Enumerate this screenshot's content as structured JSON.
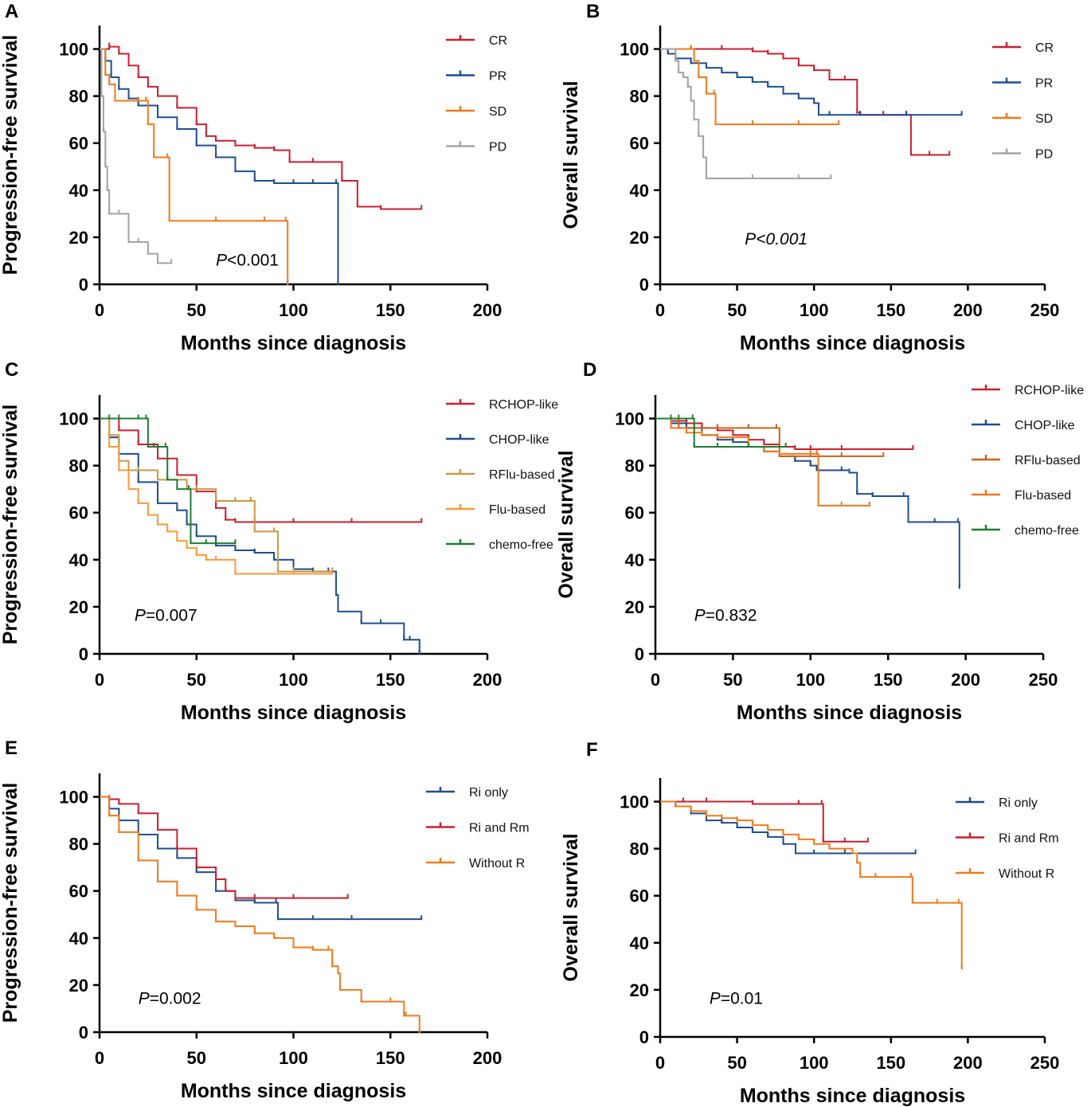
{
  "colors": {
    "red": "#c8202f",
    "blue": "#1f4e8c",
    "orange": "#f07a1e",
    "light_orange": "#f79a3c",
    "gray": "#a3a3a3",
    "tan": "#c79a45",
    "dark_orange": "#c8641e",
    "green": "#1e7d32"
  },
  "chart_data": [
    {
      "panel": "A",
      "type": "line",
      "ylabel": "Progression-free survival",
      "xlabel": "Months since diagnosis",
      "xlim": [
        0,
        200
      ],
      "ylim": [
        0,
        110
      ],
      "xticks": [
        "0",
        "50",
        "100",
        "150",
        "200"
      ],
      "yticks": [
        "0",
        "20",
        "40",
        "60",
        "80",
        "100"
      ],
      "pvalue": {
        "prefix": "P",
        "rest": "<0.001",
        "italic_rest": false,
        "x": 60,
        "y": 8
      },
      "series": [
        {
          "name": "CR",
          "color": "red",
          "x": [
            0,
            5,
            10,
            15,
            20,
            25,
            30,
            40,
            50,
            55,
            60,
            70,
            80,
            90,
            98,
            110,
            125,
            133,
            145,
            166
          ],
          "y": [
            100,
            101,
            98,
            93,
            88,
            84,
            80,
            75,
            68,
            63,
            61,
            59,
            58,
            57,
            52,
            52,
            44,
            33,
            32,
            32
          ]
        },
        {
          "name": "PR",
          "color": "blue",
          "x": [
            0,
            3,
            6,
            10,
            15,
            20,
            30,
            40,
            50,
            60,
            70,
            80,
            90,
            100,
            110,
            122,
            123
          ],
          "y": [
            100,
            95,
            88,
            83,
            79,
            76,
            71,
            66,
            59,
            54,
            48,
            44,
            43,
            43,
            43,
            43,
            0
          ]
        },
        {
          "name": "SD",
          "color": "orange",
          "x": [
            0,
            3,
            5,
            8,
            20,
            24,
            25,
            28,
            35,
            36,
            60,
            85,
            96,
            97
          ],
          "y": [
            100,
            89,
            85,
            78,
            78,
            78,
            68,
            54,
            54,
            27,
            27,
            27,
            27,
            0
          ]
        },
        {
          "name": "PD",
          "color": "gray",
          "x": [
            0,
            1,
            2,
            3,
            4,
            5,
            10,
            15,
            20,
            25,
            30,
            37
          ],
          "y": [
            100,
            80,
            65,
            50,
            40,
            30,
            30,
            18,
            18,
            13,
            9,
            9
          ]
        }
      ]
    },
    {
      "panel": "B",
      "type": "line",
      "ylabel": "Overall survival",
      "xlabel": "Months since diagnosis",
      "xlim": [
        0,
        250
      ],
      "ylim": [
        0,
        110
      ],
      "xticks": [
        "0",
        "50",
        "100",
        "150",
        "200",
        "250"
      ],
      "yticks": [
        "0",
        "20",
        "40",
        "60",
        "80",
        "100"
      ],
      "pvalue": {
        "prefix": "P",
        "rest": "<0.001",
        "italic_rest": true,
        "x": 55,
        "y": 17
      },
      "series": [
        {
          "name": "CR",
          "color": "red",
          "x": [
            0,
            20,
            40,
            60,
            70,
            80,
            90,
            100,
            110,
            120,
            128,
            130,
            145,
            160,
            163,
            175,
            188
          ],
          "y": [
            100,
            100,
            100,
            99,
            98,
            96,
            93,
            91,
            87,
            87,
            73,
            72,
            72,
            72,
            55,
            55,
            55
          ]
        },
        {
          "name": "PR",
          "color": "blue",
          "x": [
            0,
            5,
            10,
            20,
            30,
            40,
            50,
            60,
            70,
            80,
            90,
            100,
            103,
            110,
            130,
            160,
            196
          ],
          "y": [
            100,
            98,
            96,
            94,
            92,
            90,
            88,
            86,
            84,
            81,
            79,
            77,
            72,
            72,
            72,
            72,
            72
          ]
        },
        {
          "name": "SD",
          "color": "orange",
          "x": [
            0,
            20,
            22,
            25,
            30,
            35,
            36,
            60,
            90,
            116
          ],
          "y": [
            100,
            100,
            95,
            88,
            81,
            81,
            68,
            68,
            68,
            68
          ]
        },
        {
          "name": "PD",
          "color": "gray",
          "x": [
            0,
            10,
            12,
            15,
            18,
            20,
            22,
            25,
            28,
            30,
            60,
            90,
            111
          ],
          "y": [
            100,
            95,
            90,
            88,
            84,
            78,
            70,
            63,
            54,
            45,
            45,
            45,
            45
          ]
        }
      ]
    },
    {
      "panel": "C",
      "type": "line",
      "ylabel": "Progression-free survival",
      "xlabel": "Months since diagnosis",
      "xlim": [
        0,
        200
      ],
      "ylim": [
        0,
        110
      ],
      "xticks": [
        "0",
        "50",
        "100",
        "150",
        "200"
      ],
      "yticks": [
        "0",
        "20",
        "40",
        "60",
        "80",
        "100"
      ],
      "pvalue": {
        "prefix": "P",
        "rest": "=0.007",
        "italic_rest": false,
        "x": 18,
        "y": 14
      },
      "series": [
        {
          "name": "RCHOP-like",
          "color": "red",
          "x": [
            0,
            10,
            20,
            30,
            40,
            50,
            60,
            65,
            70,
            80,
            100,
            130,
            166
          ],
          "y": [
            100,
            95,
            89,
            83,
            76,
            69,
            62,
            57,
            56,
            56,
            56,
            56,
            56
          ]
        },
        {
          "name": "CHOP-like",
          "color": "blue",
          "x": [
            0,
            5,
            10,
            20,
            30,
            40,
            45,
            50,
            60,
            70,
            80,
            90,
            100,
            110,
            118,
            122,
            123,
            135,
            145,
            157,
            160,
            165
          ],
          "y": [
            100,
            92,
            85,
            73,
            64,
            61,
            55,
            50,
            46,
            44,
            43,
            40,
            36,
            35,
            35,
            25,
            18,
            13,
            13,
            6,
            6,
            0
          ]
        },
        {
          "name": "RFlu-based",
          "color": "tan",
          "x": [
            0,
            5,
            10,
            15,
            20,
            30,
            35,
            45,
            50,
            60,
            70,
            78,
            80,
            90,
            92,
            100,
            120
          ],
          "y": [
            100,
            93,
            82,
            78,
            78,
            74,
            74,
            70,
            70,
            65,
            65,
            65,
            52,
            52,
            35,
            35,
            35
          ]
        },
        {
          "name": "Flu-based",
          "color": "light_orange",
          "x": [
            0,
            5,
            10,
            15,
            20,
            25,
            30,
            35,
            40,
            45,
            50,
            55,
            60,
            70,
            100,
            120
          ],
          "y": [
            100,
            88,
            78,
            70,
            64,
            59,
            55,
            52,
            48,
            45,
            42,
            40,
            40,
            34,
            34,
            34
          ]
        },
        {
          "name": "chemo-free",
          "color": "green",
          "x": [
            0,
            5,
            10,
            20,
            24,
            25,
            28,
            34,
            35,
            40,
            46,
            47,
            55,
            60,
            70
          ],
          "y": [
            100,
            100,
            100,
            100,
            100,
            88,
            88,
            88,
            74,
            70,
            70,
            47,
            47,
            47,
            47
          ]
        }
      ]
    },
    {
      "panel": "D",
      "type": "line",
      "ylabel": "Overall survival",
      "xlabel": "Months since diagnosis",
      "xlim": [
        0,
        250
      ],
      "ylim": [
        0,
        110
      ],
      "xticks": [
        "0",
        "50",
        "100",
        "150",
        "200",
        "250"
      ],
      "yticks": [
        "0",
        "20",
        "40",
        "60",
        "80",
        "100"
      ],
      "pvalue": {
        "prefix": "P",
        "rest": "=0.832",
        "italic_rest": false,
        "x": 25,
        "y": 14
      },
      "series": [
        {
          "name": "RCHOP-like",
          "color": "red",
          "x": [
            0,
            10,
            20,
            30,
            40,
            50,
            60,
            70,
            80,
            90,
            100,
            120,
            166
          ],
          "y": [
            100,
            99,
            98,
            96,
            95,
            93,
            91,
            89,
            88,
            87,
            87,
            87,
            87
          ]
        },
        {
          "name": "CHOP-like",
          "color": "blue",
          "x": [
            0,
            10,
            20,
            30,
            40,
            50,
            60,
            70,
            80,
            90,
            100,
            104,
            120,
            125,
            130,
            140,
            160,
            163,
            180,
            195,
            196
          ],
          "y": [
            100,
            98,
            96,
            93,
            91,
            90,
            88,
            86,
            84,
            82,
            80,
            78,
            78,
            77,
            68,
            67,
            67,
            56,
            56,
            56,
            28
          ]
        },
        {
          "name": "RFlu-based",
          "color": "dark_orange",
          "x": [
            0,
            15,
            25,
            40,
            60,
            78,
            80,
            100,
            120,
            147
          ],
          "y": [
            100,
            96,
            96,
            96,
            96,
            96,
            84,
            84,
            84,
            84
          ]
        },
        {
          "name": "Flu-based",
          "color": "orange",
          "x": [
            0,
            10,
            20,
            30,
            40,
            60,
            70,
            80,
            100,
            104,
            105,
            120,
            138
          ],
          "y": [
            100,
            96,
            94,
            93,
            92,
            88,
            86,
            85,
            85,
            85,
            63,
            63,
            63
          ]
        },
        {
          "name": "chemo-free",
          "color": "green",
          "x": [
            0,
            10,
            15,
            24,
            25,
            40,
            60,
            84
          ],
          "y": [
            100,
            100,
            100,
            100,
            88,
            88,
            88,
            88
          ]
        }
      ]
    },
    {
      "panel": "E",
      "type": "line",
      "ylabel": "Progression-free survival",
      "xlabel": "Months since diagnosis",
      "xlim": [
        0,
        200
      ],
      "ylim": [
        0,
        110
      ],
      "xticks": [
        "0",
        "50",
        "100",
        "150",
        "200"
      ],
      "yticks": [
        "0",
        "20",
        "40",
        "60",
        "80",
        "100"
      ],
      "pvalue": {
        "prefix": "P",
        "rest": "=0.002",
        "italic_rest": false,
        "x": 20,
        "y": 12
      },
      "series": [
        {
          "name": "Ri only",
          "color": "blue",
          "x": [
            0,
            5,
            10,
            20,
            30,
            40,
            50,
            60,
            70,
            80,
            91,
            92,
            110,
            130,
            166
          ],
          "y": [
            100,
            95,
            90,
            84,
            78,
            74,
            68,
            60,
            56,
            55,
            55,
            48,
            48,
            48,
            48
          ]
        },
        {
          "name": "Ri and Rm",
          "color": "red",
          "x": [
            0,
            5,
            10,
            20,
            30,
            40,
            50,
            60,
            65,
            70,
            80,
            100,
            128
          ],
          "y": [
            100,
            99,
            97,
            93,
            86,
            78,
            70,
            65,
            60,
            57,
            57,
            57,
            57
          ]
        },
        {
          "name": "Without R",
          "color": "orange",
          "x": [
            0,
            5,
            10,
            20,
            30,
            40,
            50,
            60,
            70,
            80,
            90,
            100,
            110,
            118,
            120,
            123,
            124,
            135,
            150,
            157,
            158,
            165
          ],
          "y": [
            100,
            92,
            85,
            73,
            64,
            58,
            52,
            47,
            45,
            42,
            40,
            36,
            35,
            35,
            28,
            25,
            18,
            13,
            13,
            7,
            7,
            0
          ]
        }
      ]
    },
    {
      "panel": "F",
      "type": "line",
      "ylabel": "Overall survival",
      "xlabel": "Months since diagnosis",
      "xlim": [
        0,
        250
      ],
      "ylim": [
        0,
        110
      ],
      "xticks": [
        "0",
        "50",
        "100",
        "150",
        "200",
        "250"
      ],
      "yticks": [
        "0",
        "20",
        "40",
        "60",
        "80",
        "100"
      ],
      "pvalue": {
        "prefix": "P",
        "rest": "=0.01",
        "italic_rest": false,
        "x": 32,
        "y": 14
      },
      "series": [
        {
          "name": "Ri only",
          "color": "blue",
          "x": [
            0,
            10,
            20,
            30,
            40,
            50,
            60,
            70,
            80,
            88,
            100,
            120,
            166
          ],
          "y": [
            100,
            98,
            95,
            92,
            91,
            89,
            87,
            85,
            82,
            78,
            78,
            78,
            78
          ]
        },
        {
          "name": "Ri and Rm",
          "color": "red",
          "x": [
            0,
            15,
            30,
            60,
            90,
            105,
            106,
            120,
            135
          ],
          "y": [
            100,
            100,
            100,
            99,
            99,
            99,
            83,
            83,
            83
          ]
        },
        {
          "name": "Without R",
          "color": "orange",
          "x": [
            0,
            10,
            20,
            30,
            40,
            50,
            60,
            70,
            80,
            90,
            100,
            110,
            125,
            128,
            130,
            140,
            163,
            164,
            180,
            194,
            196
          ],
          "y": [
            100,
            98,
            96,
            94,
            93,
            92,
            90,
            88,
            86,
            84,
            82,
            80,
            78,
            74,
            68,
            68,
            68,
            57,
            57,
            57,
            29
          ]
        }
      ]
    }
  ]
}
